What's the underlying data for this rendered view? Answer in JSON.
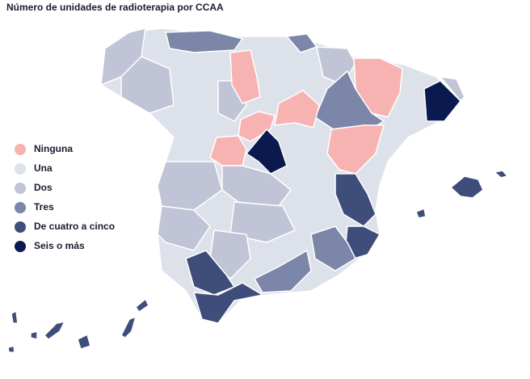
{
  "title": "Número de unidades de radioterapia por CCAA",
  "legend": [
    {
      "label": "Ninguna",
      "color": "#f7b3b1"
    },
    {
      "label": "Una",
      "color": "#dde1ea"
    },
    {
      "label": "Dos",
      "color": "#c0c4d6"
    },
    {
      "label": "Tres",
      "color": "#7b86a8"
    },
    {
      "label": "De cuatro a cinco",
      "color": "#3f4d7a"
    },
    {
      "label": "Seis o más",
      "color": "#0a1a4f"
    }
  ]
}
